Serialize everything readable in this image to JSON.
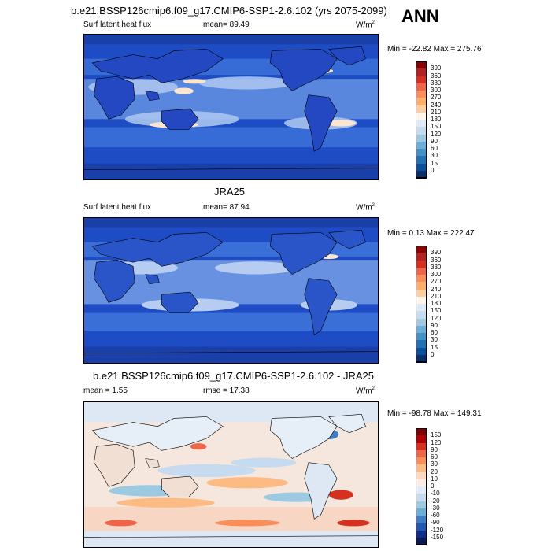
{
  "season": "ANN",
  "panels": [
    {
      "title": "b.e21.BSSP126cmip6.f09_g17.CMIP6-SSP1-2.6.102 (yrs 2075-2099)",
      "left_label": "Surf latent heat flux",
      "center_label": "mean=  89.49",
      "units": "W/m",
      "units_sup": "2",
      "minmax": "Min = -22.82 Max = 275.76",
      "colorbar_labels": [
        "390",
        "360",
        "330",
        "300",
        "270",
        "240",
        "210",
        "180",
        "150",
        "120",
        "90",
        "60",
        "30",
        "15",
        "0"
      ]
    },
    {
      "title": "JRA25",
      "left_label": "Surf latent heat flux",
      "center_label": "mean=  87.94",
      "units": "W/m",
      "units_sup": "2",
      "minmax": "Min =  0.13 Max = 222.47",
      "colorbar_labels": [
        "390",
        "360",
        "330",
        "300",
        "270",
        "240",
        "210",
        "180",
        "150",
        "120",
        "90",
        "60",
        "30",
        "15",
        "0"
      ]
    },
    {
      "title": "b.e21.BSSP126cmip6.f09_g17.CMIP6-SSP1-2.6.102 - JRA25",
      "left_label": "mean =   1.55",
      "center_label": "rmse =  17.38",
      "units": "W/m",
      "units_sup": "2",
      "minmax": "Min = -98.78 Max = 149.31",
      "colorbar_labels": [
        "150",
        "120",
        "90",
        "60",
        "30",
        "20",
        "10",
        "0",
        "-10",
        "-20",
        "-30",
        "-60",
        "-90",
        "-120",
        "-150"
      ]
    }
  ],
  "colors": {
    "flux_scale": [
      "#8b0000",
      "#b22222",
      "#d7301f",
      "#ef6548",
      "#fc8d59",
      "#fdae6b",
      "#fdd0a2",
      "#fff5eb",
      "#deebf7",
      "#c6dbef",
      "#9ecae1",
      "#6baed6",
      "#4292c6",
      "#2171b5",
      "#08519c",
      "#08306b"
    ],
    "diff_scale": [
      "#7f0000",
      "#b30000",
      "#d7301f",
      "#ef6548",
      "#fc8d59",
      "#fdbb84",
      "#fdd9c2",
      "#fbeee6",
      "#e0ecf7",
      "#c6dbef",
      "#9ecae1",
      "#6baed6",
      "#3e7fc4",
      "#2158b0",
      "#0c2f8c",
      "#081d58"
    ]
  }
}
